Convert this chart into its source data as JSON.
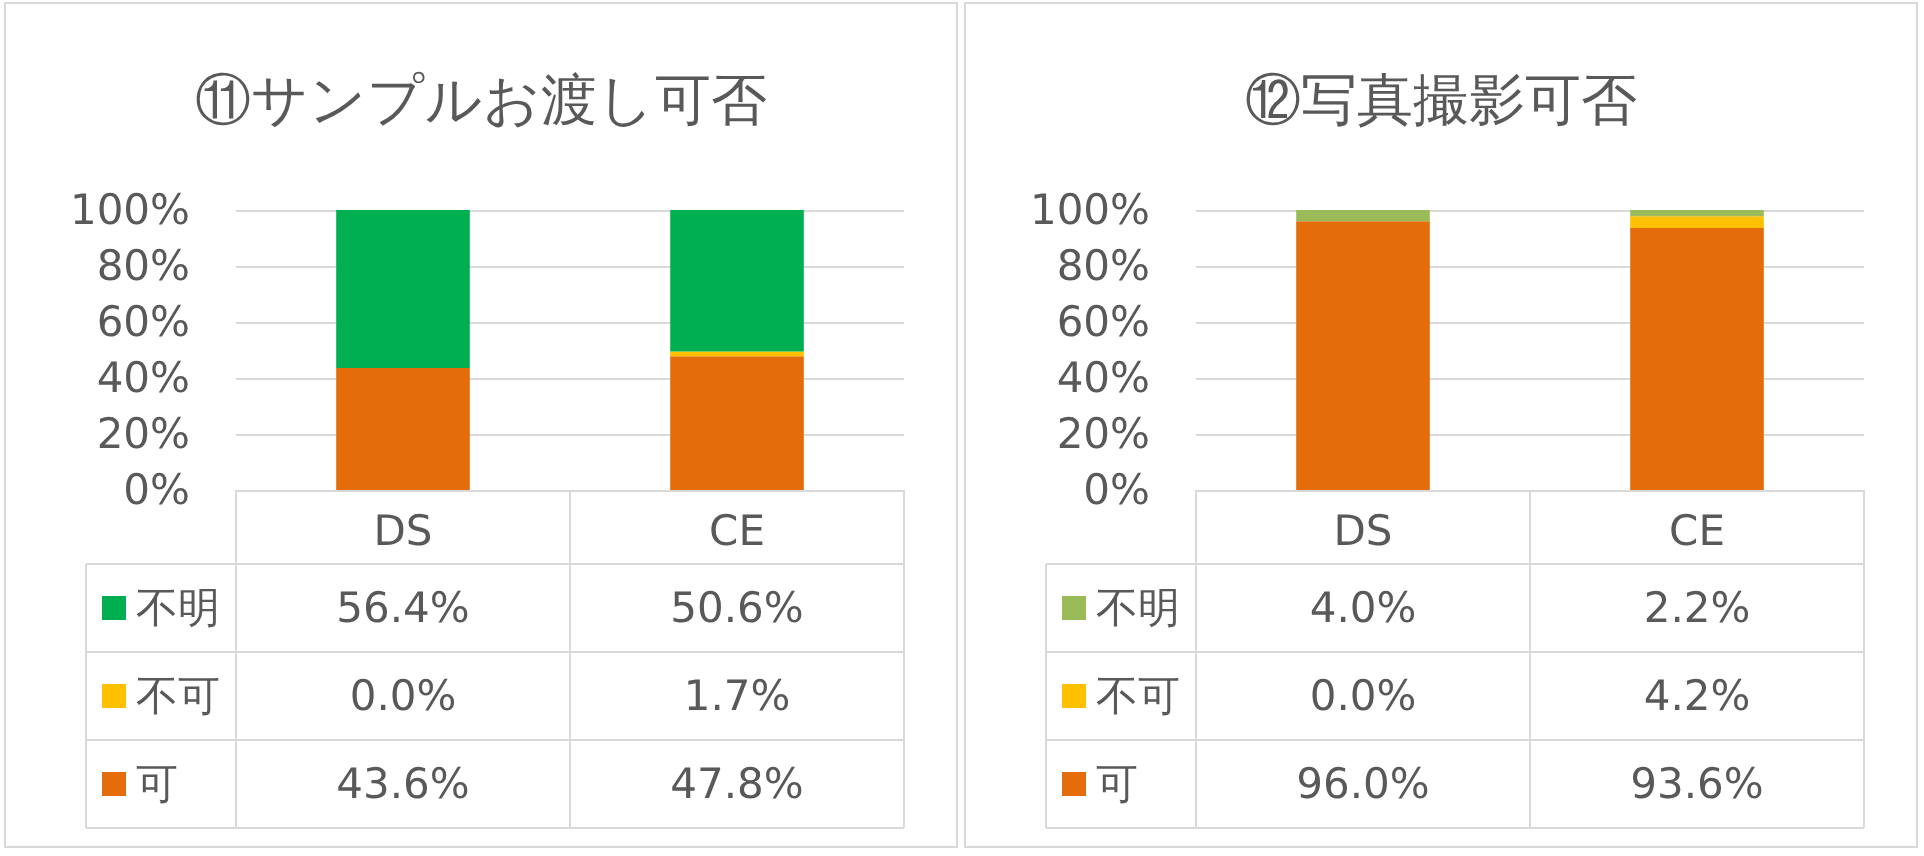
{
  "chart_data": [
    {
      "type": "bar",
      "title": "⑪サンプルお渡し可否",
      "categories": [
        "DS",
        "CE"
      ],
      "stacked": true,
      "series": [
        {
          "name": "可",
          "color": "#e46c0a",
          "values": [
            43.6,
            47.8
          ],
          "value_labels": [
            "43.6%",
            "47.8%"
          ]
        },
        {
          "name": "不可",
          "color": "#ffc000",
          "values": [
            0.0,
            1.7
          ],
          "value_labels": [
            "0.0%",
            "1.7%"
          ]
        },
        {
          "name": "不明",
          "color": "#00b050",
          "values": [
            56.4,
            50.6
          ],
          "value_labels": [
            "56.4%",
            "50.6%"
          ]
        }
      ],
      "ylim": [
        0,
        100
      ],
      "yticks": [
        {
          "value": 0,
          "label": "0%"
        },
        {
          "value": 20,
          "label": "20%"
        },
        {
          "value": 40,
          "label": "40%"
        },
        {
          "value": 60,
          "label": "60%"
        },
        {
          "value": 80,
          "label": "80%"
        },
        {
          "value": 100,
          "label": "100%"
        }
      ],
      "grid": "y",
      "legend": "bottom left"
    },
    {
      "type": "bar",
      "title": "⑫写真撮影可否",
      "categories": [
        "DS",
        "CE"
      ],
      "stacked": true,
      "series": [
        {
          "name": "可",
          "color": "#e46c0a",
          "values": [
            96.0,
            93.6
          ],
          "value_labels": [
            "96.0%",
            "93.6%"
          ]
        },
        {
          "name": "不可",
          "color": "#ffc000",
          "values": [
            0.0,
            4.2
          ],
          "value_labels": [
            "0.0%",
            "4.2%"
          ]
        },
        {
          "name": "不明",
          "color": "#9bbb59",
          "values": [
            4.0,
            2.2
          ],
          "value_labels": [
            "4.0%",
            "2.2%"
          ]
        }
      ],
      "ylim": [
        0,
        100
      ],
      "yticks": [
        {
          "value": 0,
          "label": "0%"
        },
        {
          "value": 20,
          "label": "20%"
        },
        {
          "value": 40,
          "label": "40%"
        },
        {
          "value": 60,
          "label": "60%"
        },
        {
          "value": 80,
          "label": "80%"
        },
        {
          "value": 100,
          "label": "100%"
        }
      ],
      "grid": "y",
      "legend": "bottom left"
    }
  ]
}
